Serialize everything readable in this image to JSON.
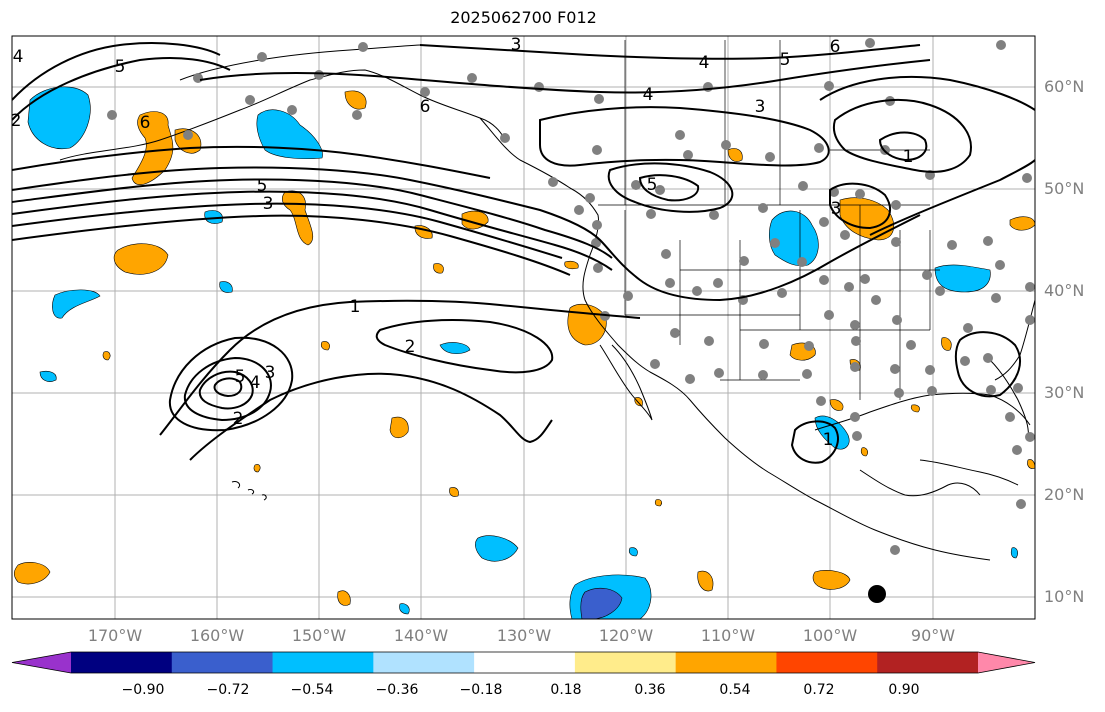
{
  "title": "2025062700 F012",
  "map": {
    "projection": "cylindrical",
    "lon_range": [
      -180,
      -80
    ],
    "lat_range": [
      8,
      65
    ],
    "gridlines": true,
    "coastlines": true,
    "state_borders": true
  },
  "lat_labels": [
    "60°N",
    "50°N",
    "40°N",
    "30°N",
    "20°N",
    "10°N"
  ],
  "lon_labels": [
    "170°W",
    "160°W",
    "150°W",
    "140°W",
    "130°W",
    "120°W",
    "110°W",
    "100°W",
    "90°W"
  ],
  "contour_labels": [
    "5",
    "4",
    "6",
    "4",
    "3",
    "5",
    "6",
    "6",
    "1",
    "5",
    "3",
    "5",
    "3",
    "4",
    "1",
    "2",
    "5",
    "4",
    "3",
    "2",
    "2",
    "1",
    "3"
  ],
  "colorbar": {
    "ticks": [
      "−0.90",
      "−0.72",
      "−0.54",
      "−0.36",
      "−0.18",
      "0.18",
      "0.36",
      "0.54",
      "0.72",
      "0.90"
    ],
    "colors": [
      "#9932cc",
      "#000080",
      "#3a5fcd",
      "#00bfff",
      "#b0e2ff",
      "#ffffff",
      "#ffec8b",
      "#ffa500",
      "#ff4500",
      "#b22222",
      "#ff88aa"
    ],
    "extend": "both"
  },
  "colors": {
    "positive": "#ffa500",
    "negative": "#00bfff",
    "station_marker": "#808080",
    "contour": "#000000",
    "grid": "#b0b0b0"
  }
}
